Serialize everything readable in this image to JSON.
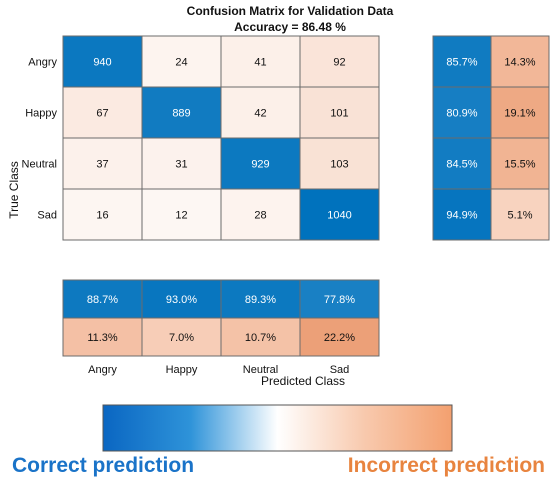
{
  "chart_data": {
    "type": "heatmap",
    "title": "Confusion Matrix for Validation Data",
    "subtitle": "Accuracy = 86.48 %",
    "xlabel": "Predicted Class",
    "ylabel": "True Class",
    "classes": [
      "Angry",
      "Happy",
      "Neutral",
      "Sad"
    ],
    "matrix": [
      [
        940,
        24,
        41,
        92
      ],
      [
        67,
        889,
        42,
        101
      ],
      [
        37,
        31,
        929,
        103
      ],
      [
        16,
        12,
        28,
        1040
      ]
    ],
    "row_summary": {
      "correct": [
        "85.7%",
        "80.9%",
        "84.5%",
        "94.9%"
      ],
      "incorrect": [
        "14.3%",
        "19.1%",
        "15.5%",
        "5.1%"
      ]
    },
    "column_summary": {
      "correct": [
        "88.7%",
        "93.0%",
        "89.3%",
        "77.8%"
      ],
      "incorrect": [
        "11.3%",
        "7.0%",
        "10.7%",
        "22.2%"
      ]
    },
    "colorbar": {
      "left_label": "Correct prediction",
      "right_label": "Incorrect prediction",
      "correct_color": "#0072bd",
      "incorrect_color": "#f0a27a"
    }
  }
}
